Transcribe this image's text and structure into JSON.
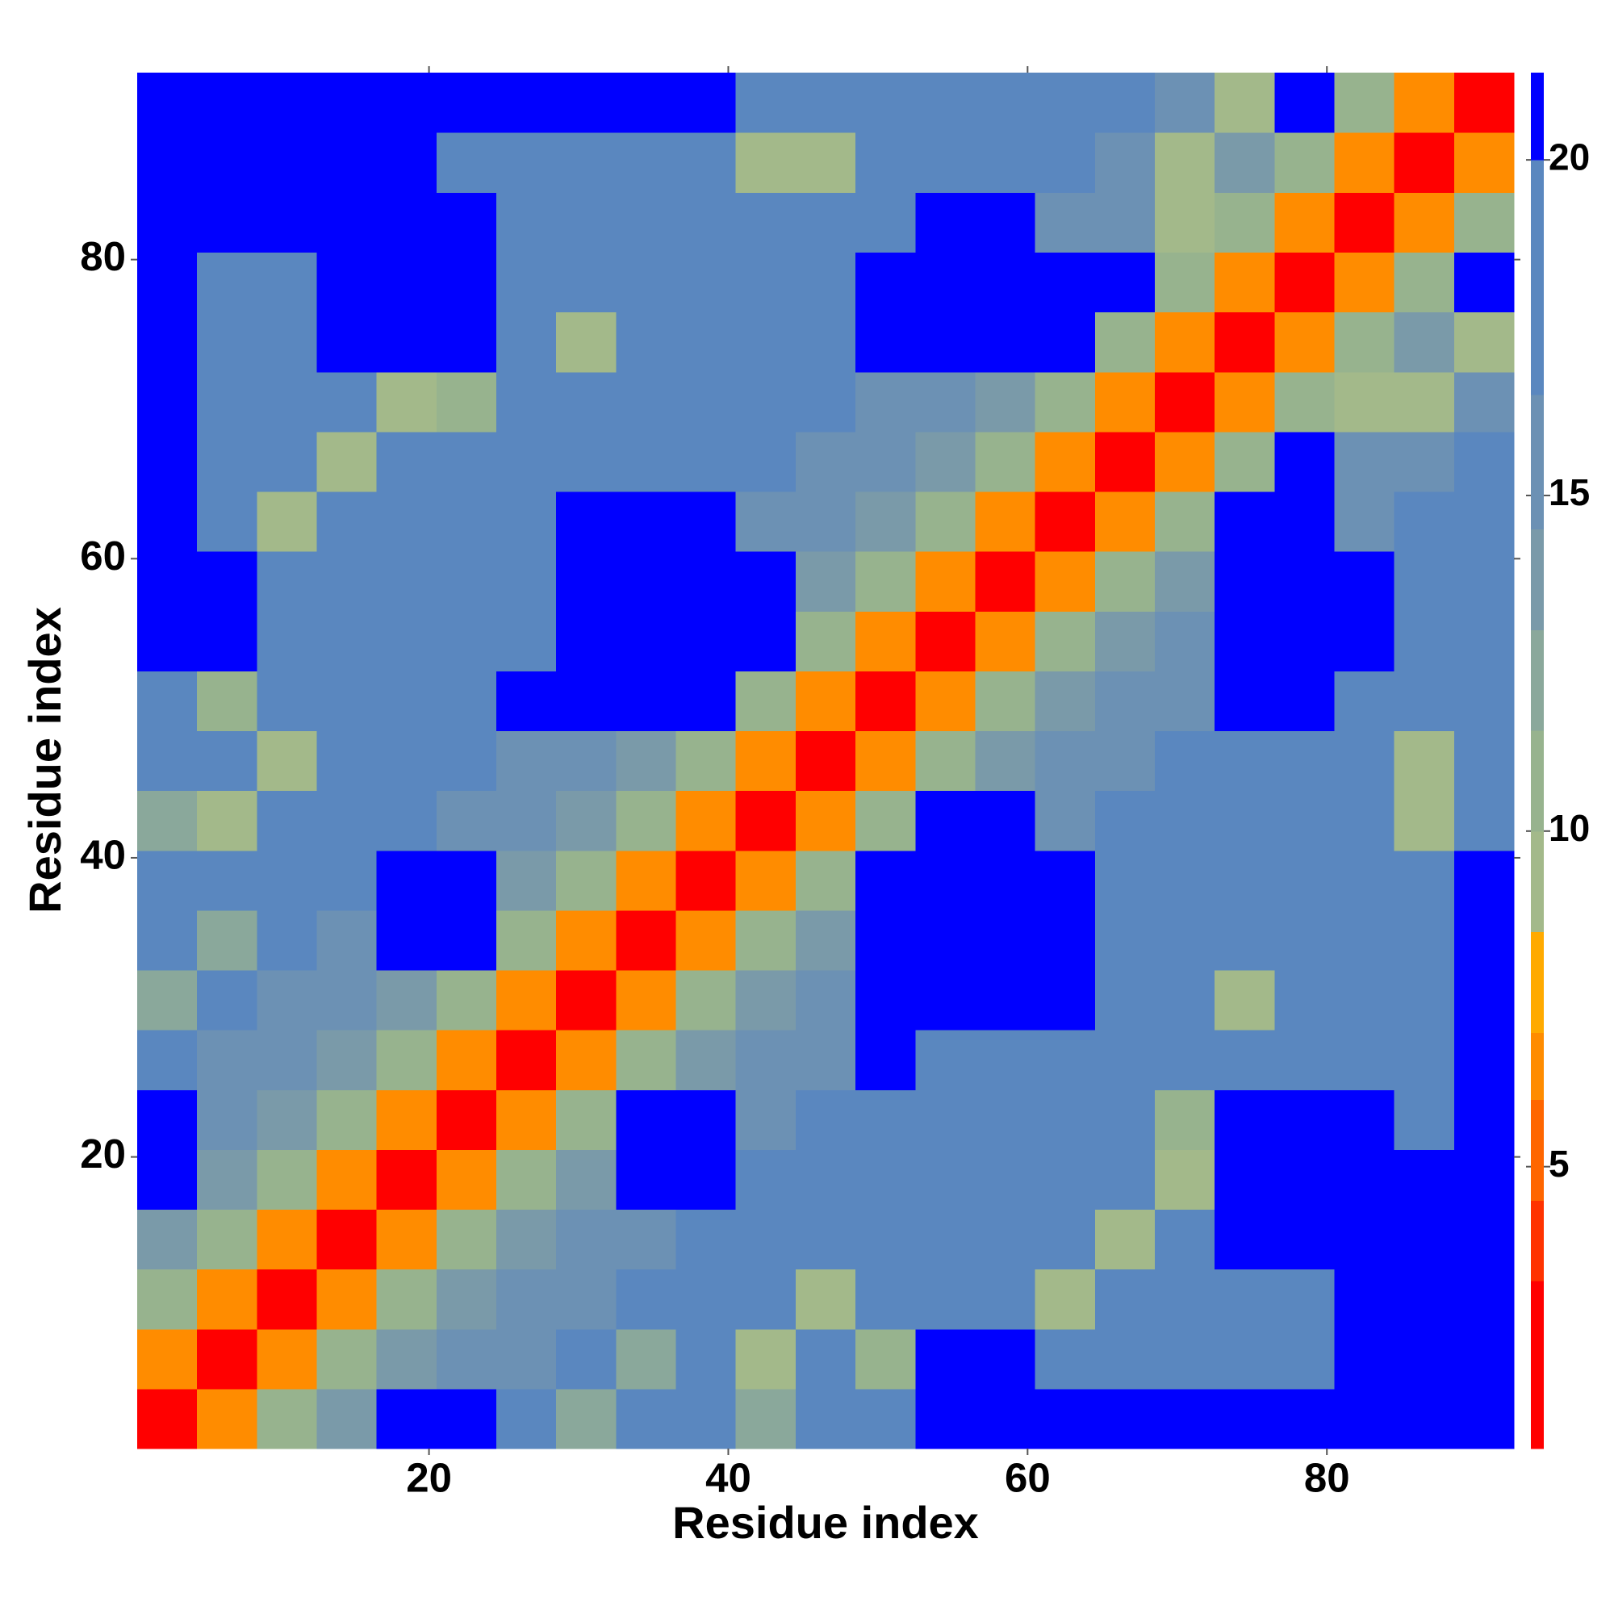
{
  "chart_data": {
    "type": "heatmap",
    "xlabel": "Residue index",
    "ylabel": "Residue index",
    "x": [
      2.5,
      6.5,
      10.5,
      14.5,
      18.5,
      22.5,
      26.5,
      30.5,
      34.5,
      38.5,
      42.5,
      46.5,
      50.5,
      54.5,
      58.5,
      62.5,
      66.5,
      70.5,
      74.5,
      78.5,
      82.5,
      86.5,
      90.5
    ],
    "y": [
      2.5,
      6.5,
      10.5,
      14.5,
      18.5,
      22.5,
      26.5,
      30.5,
      34.5,
      38.5,
      42.5,
      46.5,
      50.5,
      54.5,
      58.5,
      62.5,
      66.5,
      70.5,
      74.5,
      78.5,
      82.5,
      86.5,
      90.5
    ],
    "xlim": [
      0.5,
      92.5
    ],
    "ylim": [
      0.5,
      92.5
    ],
    "xticks": [
      20,
      40,
      60,
      80
    ],
    "yticks": [
      20,
      40,
      60,
      80
    ],
    "z": [
      [
        1.5,
        6,
        11,
        13.5,
        21,
        21,
        17,
        12,
        17,
        17,
        12,
        17,
        17,
        21,
        21,
        21,
        21,
        21,
        21,
        21,
        21,
        21,
        21
      ],
      [
        6,
        1.5,
        6,
        11,
        13.5,
        15,
        15,
        17,
        12,
        17,
        9,
        17,
        10,
        21,
        21,
        17,
        17,
        17,
        17,
        17,
        21,
        21,
        21
      ],
      [
        11,
        6,
        1.5,
        6,
        11,
        13.5,
        15,
        15,
        17,
        17,
        17,
        9,
        17,
        17,
        17,
        9,
        17,
        17,
        17,
        17,
        21,
        21,
        21
      ],
      [
        13.5,
        11,
        6,
        1.5,
        6,
        11,
        13.5,
        15,
        15,
        17,
        17,
        17,
        17,
        17,
        17,
        17,
        9,
        17,
        21,
        21,
        21,
        21,
        21
      ],
      [
        21,
        13.5,
        11,
        6,
        1.5,
        6,
        11,
        13.5,
        21,
        21,
        17,
        17,
        17,
        17,
        17,
        17,
        17,
        9,
        21,
        21,
        21,
        21,
        21
      ],
      [
        21,
        15,
        13.5,
        11,
        6,
        1.5,
        6,
        11,
        21,
        21,
        15,
        17,
        17,
        17,
        17,
        17,
        17,
        10,
        21,
        21,
        21,
        17,
        21
      ],
      [
        17,
        15,
        15,
        13.5,
        11,
        6,
        1.5,
        6,
        11,
        13.5,
        15,
        15,
        21,
        17,
        17,
        17,
        17,
        17,
        17,
        17,
        17,
        17,
        21
      ],
      [
        12,
        17,
        15,
        15,
        13.5,
        11,
        6,
        1.5,
        6,
        11,
        13.5,
        15,
        21,
        21,
        21,
        21,
        17,
        17,
        9,
        17,
        17,
        17,
        21
      ],
      [
        17,
        12,
        17,
        15,
        21,
        21,
        11,
        6,
        1.5,
        6,
        11,
        13.5,
        21,
        21,
        21,
        21,
        17,
        17,
        17,
        17,
        17,
        17,
        21
      ],
      [
        17,
        17,
        17,
        17,
        21,
        21,
        13.5,
        11,
        6,
        1.5,
        6,
        11,
        21,
        21,
        21,
        21,
        17,
        17,
        17,
        17,
        17,
        17,
        21
      ],
      [
        12,
        9,
        17,
        17,
        17,
        15,
        15,
        13.5,
        11,
        6,
        1.5,
        6,
        11,
        21,
        21,
        15,
        17,
        17,
        17,
        17,
        17,
        9,
        17
      ],
      [
        17,
        17,
        9,
        17,
        17,
        17,
        15,
        15,
        13.5,
        11,
        6,
        1.5,
        6,
        11,
        13.5,
        15,
        15,
        17,
        17,
        17,
        17,
        9,
        17
      ],
      [
        17,
        10,
        17,
        17,
        17,
        17,
        21,
        21,
        21,
        21,
        11,
        6,
        1.5,
        6,
        11,
        13.5,
        15,
        15,
        21,
        21,
        17,
        17,
        17
      ],
      [
        21,
        21,
        17,
        17,
        17,
        17,
        17,
        21,
        21,
        21,
        21,
        11,
        6,
        1.5,
        6,
        11,
        13.5,
        15,
        21,
        21,
        21,
        17,
        17
      ],
      [
        21,
        21,
        17,
        17,
        17,
        17,
        17,
        21,
        21,
        21,
        21,
        13.5,
        11,
        6,
        1.5,
        6,
        11,
        13.5,
        21,
        21,
        21,
        17,
        17
      ],
      [
        21,
        17,
        9,
        17,
        17,
        17,
        17,
        21,
        21,
        21,
        15,
        15,
        13.5,
        11,
        6,
        1.5,
        6,
        11,
        21,
        21,
        15,
        17,
        17
      ],
      [
        21,
        17,
        17,
        9,
        17,
        17,
        17,
        17,
        17,
        17,
        17,
        15,
        15,
        13.5,
        11,
        6,
        1.5,
        6,
        11,
        21,
        15,
        15,
        17
      ],
      [
        21,
        17,
        17,
        17,
        9,
        10,
        17,
        17,
        17,
        17,
        17,
        17,
        15,
        15,
        13.5,
        11,
        6,
        1.5,
        6,
        11,
        9,
        9,
        15
      ],
      [
        21,
        17,
        17,
        21,
        21,
        21,
        17,
        9,
        17,
        17,
        17,
        17,
        21,
        21,
        21,
        21,
        11,
        6,
        1.5,
        6,
        11,
        13.5,
        9
      ],
      [
        21,
        17,
        17,
        21,
        21,
        21,
        17,
        17,
        17,
        17,
        17,
        17,
        21,
        21,
        21,
        21,
        21,
        11,
        6,
        1.5,
        6,
        11,
        21
      ],
      [
        21,
        21,
        21,
        21,
        21,
        21,
        17,
        17,
        17,
        17,
        17,
        17,
        17,
        21,
        21,
        15,
        15,
        9,
        11,
        6,
        1.5,
        6,
        11
      ],
      [
        21,
        21,
        21,
        21,
        21,
        17,
        17,
        17,
        17,
        17,
        9,
        9,
        17,
        17,
        17,
        17,
        15,
        9,
        13.5,
        11,
        6,
        1.5,
        6
      ],
      [
        21,
        21,
        21,
        21,
        21,
        21,
        21,
        21,
        21,
        21,
        17,
        17,
        17,
        17,
        17,
        17,
        17,
        15,
        9,
        21,
        11,
        6,
        1.5
      ]
    ],
    "colorbar": {
      "lim": [
        0.8,
        21.3
      ],
      "ticks": [
        5,
        10,
        15,
        20
      ],
      "bounds": [
        0.8,
        3.3,
        4.5,
        6,
        7,
        8.5,
        10,
        11.5,
        13,
        14.5,
        16.5,
        20,
        21.3
      ],
      "colors": [
        "#ff0000",
        "#ff3300",
        "#ff6600",
        "#ff8c00",
        "#ffaa00",
        "#a3b98a",
        "#97b38e",
        "#8aa89b",
        "#7a9aa9",
        "#6c91b4",
        "#5a87bf",
        "#0000ff"
      ]
    }
  }
}
